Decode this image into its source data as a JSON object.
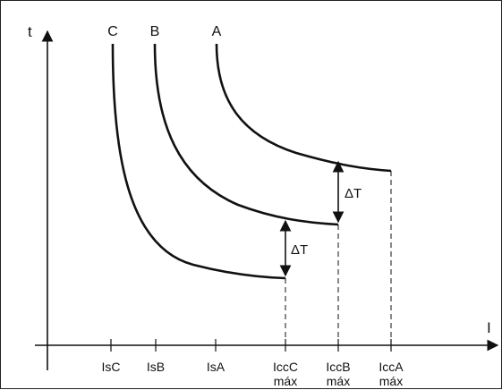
{
  "axes": {
    "y_label": "t",
    "x_label": "I"
  },
  "curves": [
    {
      "label": "C"
    },
    {
      "label": "B"
    },
    {
      "label": "A"
    }
  ],
  "ticks": [
    {
      "line1": "IsC",
      "line2": ""
    },
    {
      "line1": "IsB",
      "line2": ""
    },
    {
      "line1": "IsA",
      "line2": ""
    },
    {
      "line1": "IccC",
      "line2": "máx"
    },
    {
      "line1": "IccB",
      "line2": "máx"
    },
    {
      "line1": "IccA",
      "line2": "máx"
    }
  ],
  "deltas": [
    {
      "label": "ΔT"
    },
    {
      "label": "ΔT"
    }
  ],
  "colors": {
    "ink": "#111111",
    "background": "#ffffff",
    "border": "#222222"
  }
}
